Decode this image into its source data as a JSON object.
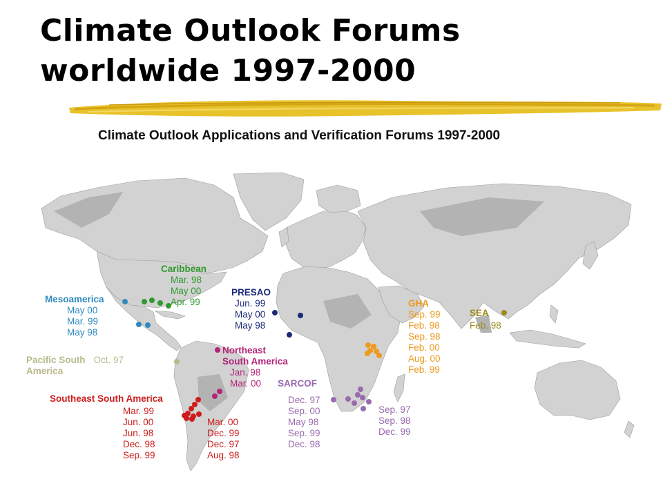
{
  "slide": {
    "title": "Climate Outlook Forums worldwide 1997-2000"
  },
  "map": {
    "title": "Climate Outlook Applications and Verification Forums  1997-2000",
    "colors": {
      "ocean": "#ffffff",
      "land_light": "#e6e6e6",
      "land_mid": "#cfcfcf",
      "land_dark": "#b5b5b5",
      "caribbean": "#2f9a2f",
      "mesoamerica": "#2e8bc0",
      "pacific_south_america": "#b8b98a",
      "presao": "#1b2a78",
      "northeast_south_america": "#b3247a",
      "southeast_south_america": "#cc1c1c",
      "gha": "#ee9a1e",
      "sarcof": "#9a6aae",
      "sea": "#9c8a1c"
    },
    "forums": {
      "caribbean": {
        "name": "Caribbean",
        "dates": [
          "Mar. 98",
          "May 00",
          "Apr. 99"
        ]
      },
      "mesoamerica": {
        "name": "Mesoamerica",
        "dates": [
          "May 00",
          "Mar. 99",
          "May 98"
        ]
      },
      "pacific_south_america": {
        "name_line1": "Pacific South",
        "name_line2": "America",
        "date": "Oct. 97"
      },
      "presao": {
        "name": "PRESAO",
        "dates": [
          "Jun. 99",
          "May 00",
          "May 98"
        ]
      },
      "northeast_south_america": {
        "name_line1": "Northeast",
        "name_line2": "South America",
        "dates": [
          "Jan. 98",
          "Mar. 00"
        ]
      },
      "southeast_south_america": {
        "name": "Southeast South America",
        "dates_left": [
          "Mar. 99",
          "Jun. 00",
          "Jun. 98",
          "Dec. 98",
          "Sep. 99"
        ],
        "dates_right": [
          "Mar. 00",
          "Dec. 99",
          "Dec. 97",
          "Aug. 98"
        ]
      },
      "gha": {
        "name": "GHA",
        "dates": [
          "Sep. 99",
          "Feb. 98",
          "Sep. 98",
          "Feb. 00",
          "Aug. 00",
          "Feb. 99"
        ]
      },
      "sarcof": {
        "name": "SARCOF",
        "dates_left": [
          "Dec. 97",
          "Sep. 00",
          "May 98",
          "Sep. 99",
          "Dec. 98"
        ],
        "dates_right": [
          "Sep. 97",
          "Sep. 98",
          "Dec. 99"
        ]
      },
      "sea": {
        "name": "SEA",
        "date": "Feb. 98"
      }
    }
  }
}
